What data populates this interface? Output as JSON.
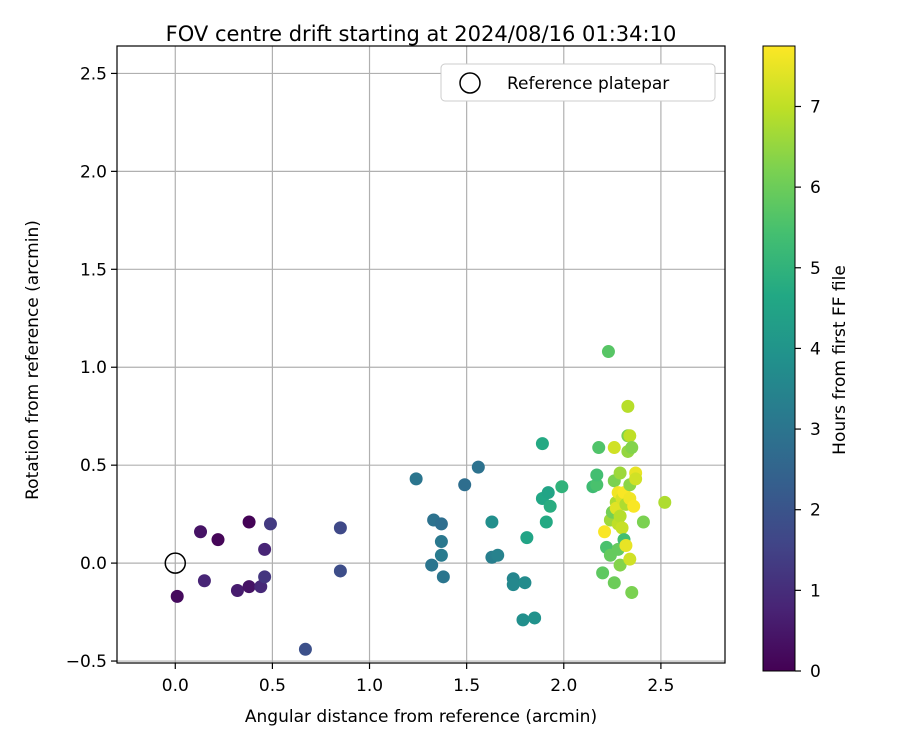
{
  "chart_data": {
    "type": "scatter",
    "title": "FOV centre drift starting at 2024/08/16 01:34:10",
    "xlabel": "Angular distance from reference (arcmin)",
    "ylabel": "Rotation from reference (arcmin)",
    "xlim": [
      -0.3,
      2.83
    ],
    "ylim": [
      -0.51,
      2.64
    ],
    "xticks": [
      0.0,
      0.5,
      1.0,
      1.5,
      2.0,
      2.5
    ],
    "xtick_labels": [
      "0.0",
      "0.5",
      "1.0",
      "1.5",
      "2.0",
      "2.5"
    ],
    "yticks": [
      -0.5,
      0.0,
      0.5,
      1.0,
      1.5,
      2.0,
      2.5
    ],
    "ytick_labels": [
      "−0.5",
      "0.0",
      "0.5",
      "1.0",
      "1.5",
      "2.0",
      "2.5"
    ],
    "grid": true,
    "legend": {
      "placement": "top-right",
      "entries": [
        "Reference platepar"
      ]
    },
    "reference_point": {
      "x": 0.0,
      "y": 0.0
    },
    "colorbar": {
      "label": "Hours from first FF file",
      "colormap": "viridis",
      "range": [
        0,
        7.75
      ],
      "ticks": [
        0,
        1,
        2,
        3,
        4,
        5,
        6,
        7
      ],
      "tick_labels": [
        "0",
        "1",
        "2",
        "3",
        "4",
        "5",
        "6",
        "7"
      ]
    },
    "points": [
      {
        "x": 0.01,
        "y": -0.17,
        "h": 0.2
      },
      {
        "x": 0.13,
        "y": 0.16,
        "h": 0.4
      },
      {
        "x": 0.15,
        "y": -0.09,
        "h": 0.8
      },
      {
        "x": 0.22,
        "y": 0.12,
        "h": 0.1
      },
      {
        "x": 0.32,
        "y": -0.14,
        "h": 0.6
      },
      {
        "x": 0.38,
        "y": 0.21,
        "h": 0.05
      },
      {
        "x": 0.38,
        "y": -0.12,
        "h": 0.4
      },
      {
        "x": 0.44,
        "y": -0.12,
        "h": 0.9
      },
      {
        "x": 0.46,
        "y": -0.07,
        "h": 1.2
      },
      {
        "x": 0.46,
        "y": 0.07,
        "h": 0.8
      },
      {
        "x": 0.49,
        "y": 0.2,
        "h": 1.3
      },
      {
        "x": 0.67,
        "y": -0.44,
        "h": 1.9
      },
      {
        "x": 0.85,
        "y": -0.04,
        "h": 1.8
      },
      {
        "x": 0.85,
        "y": 0.18,
        "h": 1.7
      },
      {
        "x": 1.24,
        "y": 0.43,
        "h": 3.0
      },
      {
        "x": 1.32,
        "y": -0.01,
        "h": 3.0
      },
      {
        "x": 1.33,
        "y": 0.22,
        "h": 2.9
      },
      {
        "x": 1.37,
        "y": 0.2,
        "h": 2.8
      },
      {
        "x": 1.37,
        "y": 0.11,
        "h": 3.1
      },
      {
        "x": 1.37,
        "y": 0.04,
        "h": 3.2
      },
      {
        "x": 1.38,
        "y": -0.07,
        "h": 3.0
      },
      {
        "x": 1.49,
        "y": 0.4,
        "h": 2.8
      },
      {
        "x": 1.56,
        "y": 0.49,
        "h": 2.9
      },
      {
        "x": 1.63,
        "y": 0.21,
        "h": 3.8
      },
      {
        "x": 1.63,
        "y": 0.03,
        "h": 3.3
      },
      {
        "x": 1.66,
        "y": 0.04,
        "h": 3.4
      },
      {
        "x": 1.74,
        "y": -0.08,
        "h": 3.5
      },
      {
        "x": 1.74,
        "y": -0.11,
        "h": 3.6
      },
      {
        "x": 1.79,
        "y": -0.29,
        "h": 3.8
      },
      {
        "x": 1.8,
        "y": -0.1,
        "h": 3.7
      },
      {
        "x": 1.81,
        "y": 0.13,
        "h": 4.5
      },
      {
        "x": 1.85,
        "y": -0.28,
        "h": 3.9
      },
      {
        "x": 1.89,
        "y": 0.61,
        "h": 4.7
      },
      {
        "x": 1.89,
        "y": 0.33,
        "h": 4.6
      },
      {
        "x": 1.91,
        "y": 0.21,
        "h": 4.7
      },
      {
        "x": 1.92,
        "y": 0.36,
        "h": 4.5
      },
      {
        "x": 1.93,
        "y": 0.29,
        "h": 4.8
      },
      {
        "x": 1.99,
        "y": 0.39,
        "h": 5.0
      },
      {
        "x": 2.15,
        "y": 0.39,
        "h": 5.3
      },
      {
        "x": 2.17,
        "y": 0.4,
        "h": 5.5
      },
      {
        "x": 2.17,
        "y": 0.45,
        "h": 5.4
      },
      {
        "x": 2.18,
        "y": 0.59,
        "h": 5.6
      },
      {
        "x": 2.2,
        "y": -0.05,
        "h": 5.8
      },
      {
        "x": 2.21,
        "y": 0.16,
        "h": 7.7
      },
      {
        "x": 2.22,
        "y": 0.08,
        "h": 5.5
      },
      {
        "x": 2.23,
        "y": 1.08,
        "h": 5.7
      },
      {
        "x": 2.24,
        "y": 0.22,
        "h": 6.6
      },
      {
        "x": 2.24,
        "y": 0.04,
        "h": 5.9
      },
      {
        "x": 2.25,
        "y": 0.26,
        "h": 6.1
      },
      {
        "x": 2.26,
        "y": -0.1,
        "h": 6.0
      },
      {
        "x": 2.26,
        "y": 0.42,
        "h": 6.2
      },
      {
        "x": 2.26,
        "y": 0.59,
        "h": 7.2
      },
      {
        "x": 2.27,
        "y": 0.31,
        "h": 6.8
      },
      {
        "x": 2.27,
        "y": 0.28,
        "h": 7.4
      },
      {
        "x": 2.28,
        "y": 0.07,
        "h": 5.9
      },
      {
        "x": 2.28,
        "y": 0.2,
        "h": 7.0
      },
      {
        "x": 2.28,
        "y": 0.36,
        "h": 7.6
      },
      {
        "x": 2.29,
        "y": -0.01,
        "h": 6.3
      },
      {
        "x": 2.29,
        "y": 0.46,
        "h": 6.6
      },
      {
        "x": 2.29,
        "y": 0.24,
        "h": 6.9
      },
      {
        "x": 2.3,
        "y": 0.33,
        "h": 7.3
      },
      {
        "x": 2.3,
        "y": 0.18,
        "h": 7.1
      },
      {
        "x": 2.31,
        "y": 0.12,
        "h": 5.4
      },
      {
        "x": 2.31,
        "y": 0.36,
        "h": 7.7
      },
      {
        "x": 2.32,
        "y": 0.09,
        "h": 7.5
      },
      {
        "x": 2.32,
        "y": 0.3,
        "h": 6.8
      },
      {
        "x": 2.33,
        "y": 0.8,
        "h": 6.9
      },
      {
        "x": 2.33,
        "y": 0.57,
        "h": 6.5
      },
      {
        "x": 2.33,
        "y": 0.65,
        "h": 6.2
      },
      {
        "x": 2.34,
        "y": 0.02,
        "h": 7.2
      },
      {
        "x": 2.34,
        "y": 0.33,
        "h": 7.6
      },
      {
        "x": 2.34,
        "y": 0.4,
        "h": 6.4
      },
      {
        "x": 2.34,
        "y": 0.65,
        "h": 7.0
      },
      {
        "x": 2.35,
        "y": -0.15,
        "h": 6.2
      },
      {
        "x": 2.35,
        "y": 0.59,
        "h": 6.3
      },
      {
        "x": 2.36,
        "y": 0.29,
        "h": 7.7
      },
      {
        "x": 2.37,
        "y": 0.46,
        "h": 7.5
      },
      {
        "x": 2.37,
        "y": 0.43,
        "h": 7.2
      },
      {
        "x": 2.41,
        "y": 0.21,
        "h": 6.2
      },
      {
        "x": 2.52,
        "y": 0.31,
        "h": 6.8
      }
    ]
  }
}
